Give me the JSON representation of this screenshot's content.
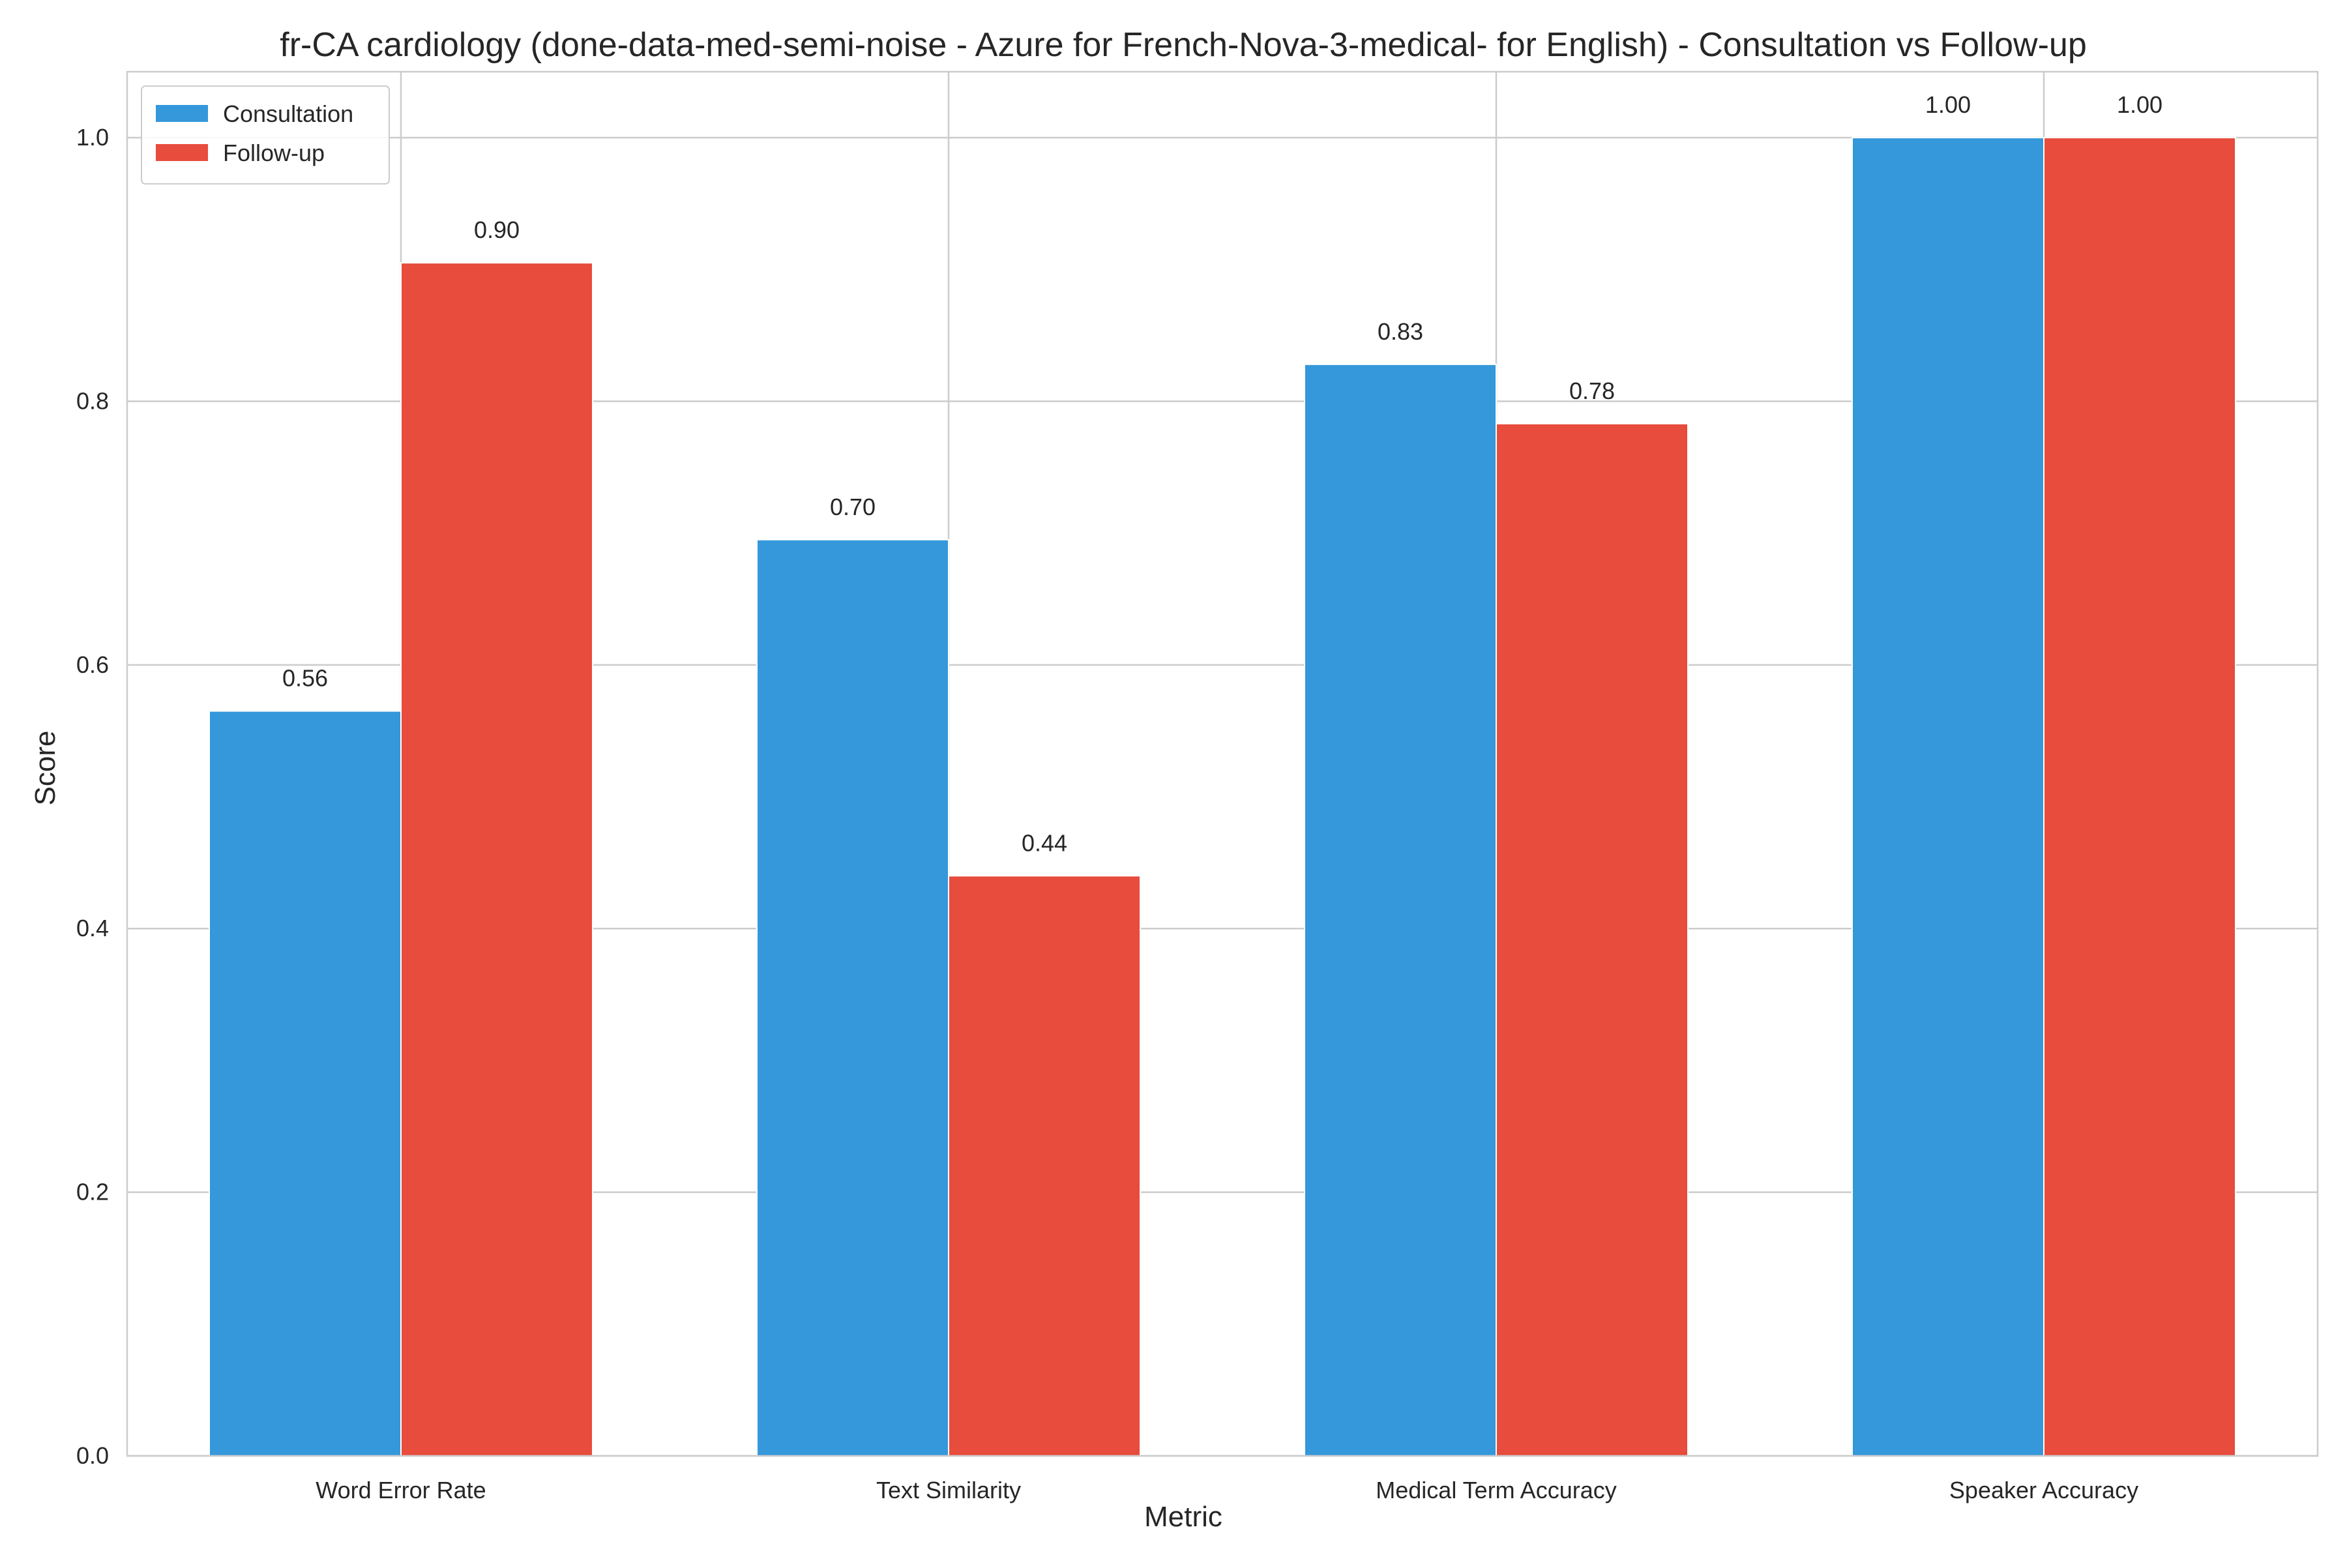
{
  "chart_data": {
    "type": "bar",
    "title": "fr-CA cardiology (done-data-med-semi-noise - Azure for French-Nova-3-medical- for English) - Consultation vs Follow-up",
    "xlabel": "Metric",
    "ylabel": "Score",
    "ylim": [
      0,
      1.05
    ],
    "yticks": [
      "0.0",
      "0.2",
      "0.4",
      "0.6",
      "0.8",
      "1.0"
    ],
    "ytick_values": [
      0,
      0.2,
      0.4,
      0.6,
      0.8,
      1.0
    ],
    "categories": [
      "Word Error Rate",
      "Text Similarity",
      "Medical Term Accuracy",
      "Speaker Accuracy"
    ],
    "series": [
      {
        "name": "Consultation",
        "color": "#3498db",
        "values": [
          0.565,
          0.695,
          0.828,
          1.0
        ],
        "labels": [
          "0.56",
          "0.70",
          "0.83",
          "1.00"
        ]
      },
      {
        "name": "Follow-up",
        "color": "#e74c3c",
        "values": [
          0.905,
          0.44,
          0.783,
          1.0
        ],
        "labels": [
          "0.90",
          "0.44",
          "0.78",
          "1.00"
        ]
      }
    ],
    "grid": true,
    "legend_position": "top-left"
  }
}
